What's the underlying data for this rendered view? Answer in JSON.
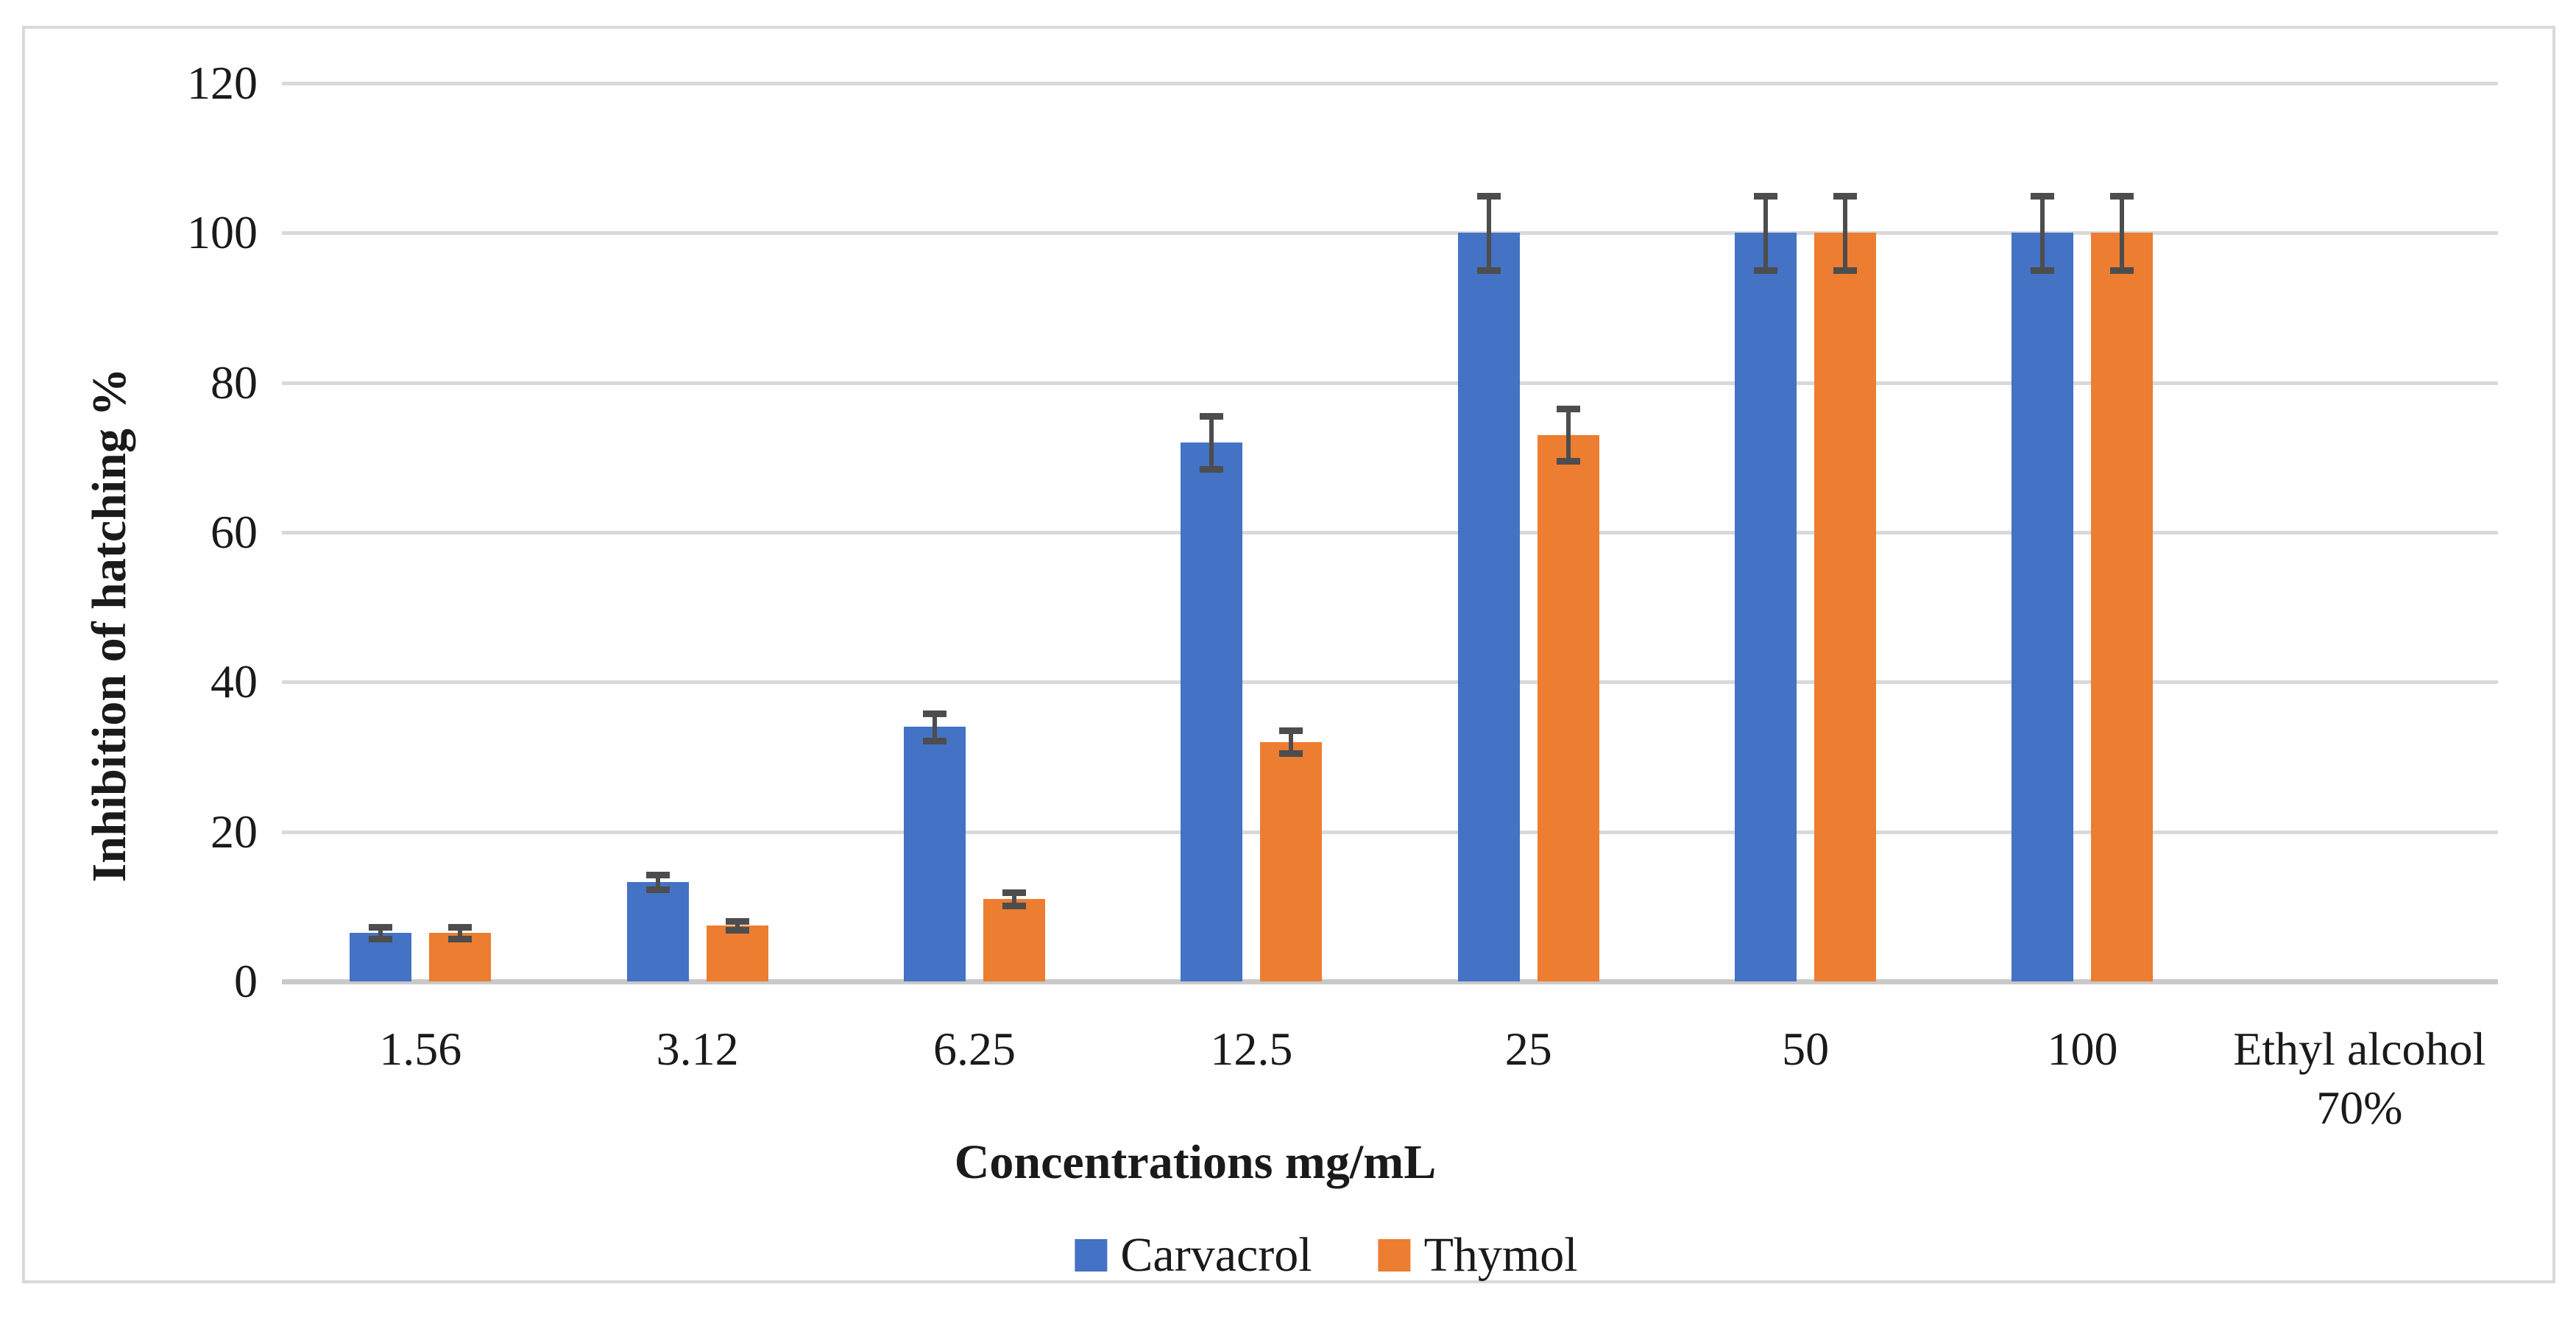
{
  "chart_data": {
    "type": "bar",
    "title": "",
    "ylabel": "Inhibition of hatching %",
    "xlabel": "Concentrations mg/mL",
    "ylim": [
      0,
      120
    ],
    "yticks": [
      0,
      20,
      40,
      60,
      80,
      100,
      120
    ],
    "grid": true,
    "legend_position": "bottom-center",
    "categories": [
      {
        "lines": [
          "1.56"
        ]
      },
      {
        "lines": [
          "3.12"
        ]
      },
      {
        "lines": [
          "6.25"
        ]
      },
      {
        "lines": [
          "12.5"
        ]
      },
      {
        "lines": [
          "25"
        ]
      },
      {
        "lines": [
          "50"
        ]
      },
      {
        "lines": [
          "100"
        ]
      },
      {
        "lines": [
          "Ethyl alcohol",
          "70%"
        ]
      }
    ],
    "series": [
      {
        "name": "Carvacrol",
        "color": "#4472C4",
        "values": [
          6.5,
          13.3,
          34,
          72,
          100,
          100,
          100,
          0
        ],
        "errors": [
          0.8,
          1.0,
          1.8,
          3.5,
          5,
          5,
          5,
          0
        ]
      },
      {
        "name": "Thymol",
        "color": "#ED7D31",
        "values": [
          6.5,
          7.5,
          11,
          32,
          73,
          100,
          100,
          0
        ],
        "errors": [
          0.8,
          0.6,
          0.9,
          1.5,
          3.5,
          5,
          5,
          0
        ]
      }
    ],
    "style_colors": {
      "error_bar": "#4d4d4d",
      "gridline": "#d9d9d9",
      "axis_line": "#c9c9c9",
      "frame_border": "#d9d9d9",
      "text": "#1a1a1a"
    }
  }
}
